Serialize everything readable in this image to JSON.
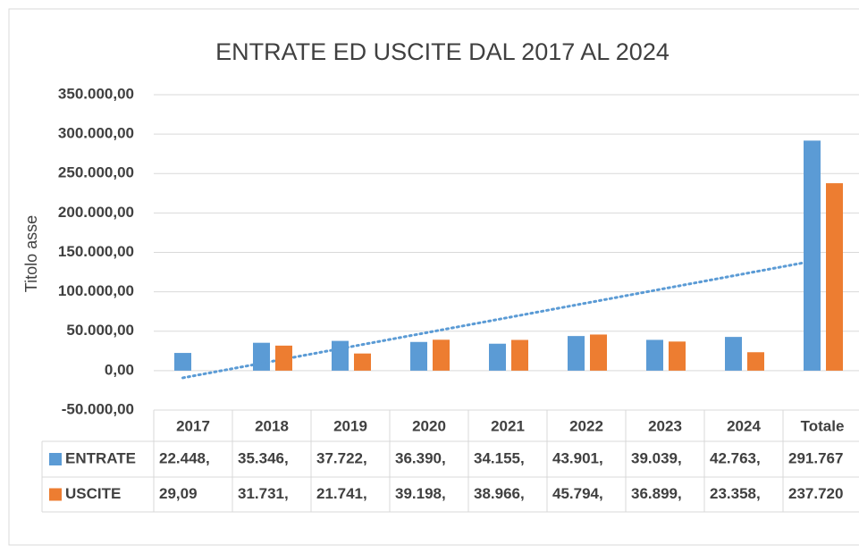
{
  "chart_data": {
    "type": "bar",
    "title": "ENTRATE ED USCITE DAL 2017 AL 2024",
    "y_axis_label": "Titolo asse",
    "categories": [
      "2017",
      "2018",
      "2019",
      "2020",
      "2021",
      "2022",
      "2023",
      "2024",
      "Totale"
    ],
    "series": [
      {
        "name": "ENTRATE",
        "color": "#5b9bd5",
        "trendline": "linear",
        "values": [
          22448,
          35346,
          37722,
          36390,
          34155,
          43901,
          39039,
          42763,
          291767
        ],
        "value_labels": [
          "22.448,",
          "35.346,",
          "37.722,",
          "36.390,",
          "34.155,",
          "43.901,",
          "39.039,",
          "42.763,",
          "291.767"
        ]
      },
      {
        "name": "USCITE",
        "color": "#ed7d31",
        "values": [
          29.09,
          31731,
          21741,
          39198,
          38966,
          45794,
          36899,
          23358,
          237720
        ],
        "value_labels": [
          "29,09",
          "31.731,",
          "21.741,",
          "39.198,",
          "38.966,",
          "45.794,",
          "36.899,",
          "23.358,",
          "237.720"
        ]
      }
    ],
    "ylim": [
      -50000,
      350000
    ],
    "yticks": [
      {
        "value": -50000,
        "label": "-50.000,00"
      },
      {
        "value": 0,
        "label": "0,00"
      },
      {
        "value": 50000,
        "label": "50.000,00"
      },
      {
        "value": 100000,
        "label": "100.000,00"
      },
      {
        "value": 150000,
        "label": "150.000,00"
      },
      {
        "value": 200000,
        "label": "200.000,00"
      },
      {
        "value": 250000,
        "label": "250.000,00"
      },
      {
        "value": 300000,
        "label": "300.000,00"
      },
      {
        "value": 350000,
        "label": "350.000,00"
      }
    ],
    "grid": true
  }
}
